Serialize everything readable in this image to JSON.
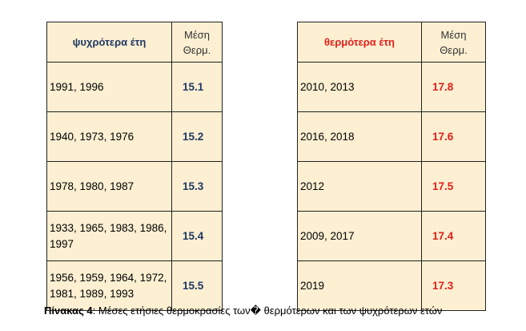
{
  "cold_table": {
    "header_years": "ψυχρότερα έτη",
    "header_mean_line1": "Μέση",
    "header_mean_line2": "Θερμ.",
    "rows": [
      {
        "years": "1991, 1996",
        "value": "15.1"
      },
      {
        "years": "1940, 1973, 1976",
        "value": "15.2"
      },
      {
        "years": "1978, 1980, 1987",
        "value": "15.3"
      },
      {
        "years": "1933, 1965, 1983, 1986, 1997",
        "value": "15.4"
      },
      {
        "years": "1956, 1959, 1964, 1972, 1981, 1989, 1993",
        "value": "15.5"
      }
    ]
  },
  "hot_table": {
    "header_years": "θερμότερα έτη",
    "header_mean_line1": "Μέση",
    "header_mean_line2": "Θερμ.",
    "rows": [
      {
        "years": "2010, 2013",
        "value": "17.8"
      },
      {
        "years": "2016, 2018",
        "value": "17.6"
      },
      {
        "years": "2012",
        "value": "17.5"
      },
      {
        "years": "2009, 2017",
        "value": "17.4"
      },
      {
        "years": "2019",
        "value": "17.3"
      }
    ]
  },
  "caption": {
    "label": "Πίνακας 4",
    "text": ": Μέσες ετήσιες θερμοκρασίες των� θερμότερων και των ψυχρότερων ετών"
  },
  "colors": {
    "cell_background": "#fcefd2",
    "cold_accent": "#1f3864",
    "hot_accent": "#e0201b"
  }
}
